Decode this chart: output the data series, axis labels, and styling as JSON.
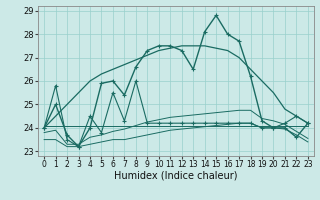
{
  "xlabel": "Humidex (Indice chaleur)",
  "xlim": [
    -0.5,
    23.5
  ],
  "ylim": [
    22.8,
    29.2
  ],
  "yticks": [
    23,
    24,
    25,
    26,
    27,
    28,
    29
  ],
  "xticks": [
    0,
    1,
    2,
    3,
    4,
    5,
    6,
    7,
    8,
    9,
    10,
    11,
    12,
    13,
    14,
    15,
    16,
    17,
    18,
    19,
    20,
    21,
    22,
    23
  ],
  "bg_color": "#cce9e7",
  "grid_color": "#99d0cc",
  "line_color": "#1a6b62",
  "series_main": [
    24.0,
    25.0,
    23.7,
    23.2,
    24.0,
    25.9,
    26.0,
    25.4,
    26.6,
    27.3,
    27.5,
    27.5,
    27.3,
    26.5,
    28.1,
    28.8,
    28.0,
    27.7,
    26.2,
    24.3,
    24.0,
    24.0,
    23.6,
    24.2
  ],
  "series_flat": [
    24.1,
    24.1,
    24.1,
    24.1,
    24.1,
    24.1,
    24.1,
    24.1,
    24.1,
    24.1,
    24.1,
    24.1,
    24.1,
    24.1,
    24.1,
    24.1,
    24.1,
    24.1,
    24.1,
    24.1,
    24.1,
    24.1,
    24.1,
    24.1
  ],
  "series_diag_low": [
    23.5,
    23.5,
    23.2,
    23.2,
    23.3,
    23.4,
    23.5,
    23.5,
    23.6,
    23.7,
    23.8,
    23.9,
    23.95,
    24.0,
    24.05,
    24.1,
    24.15,
    24.2,
    24.2,
    24.0,
    24.0,
    23.95,
    23.7,
    23.4
  ],
  "series_diag_mid": [
    23.8,
    23.9,
    23.3,
    23.3,
    23.6,
    23.7,
    23.85,
    23.95,
    24.1,
    24.25,
    24.35,
    24.45,
    24.5,
    24.55,
    24.6,
    24.65,
    24.7,
    24.75,
    24.75,
    24.4,
    24.3,
    24.15,
    23.85,
    23.55
  ],
  "series_zigzag": [
    24.0,
    25.8,
    23.5,
    23.2,
    24.5,
    23.8,
    25.5,
    24.3,
    26.0,
    24.2,
    24.2,
    24.2,
    24.2,
    24.2,
    24.2,
    24.2,
    24.2,
    24.2,
    24.2,
    24.0,
    24.0,
    24.2,
    24.5,
    24.2
  ],
  "series_trend": [
    24.0,
    24.5,
    25.0,
    25.5,
    26.0,
    26.3,
    26.5,
    26.7,
    26.9,
    27.1,
    27.3,
    27.4,
    27.5,
    27.5,
    27.5,
    27.4,
    27.3,
    27.0,
    26.5,
    26.0,
    25.5,
    24.8,
    24.5,
    24.2
  ]
}
